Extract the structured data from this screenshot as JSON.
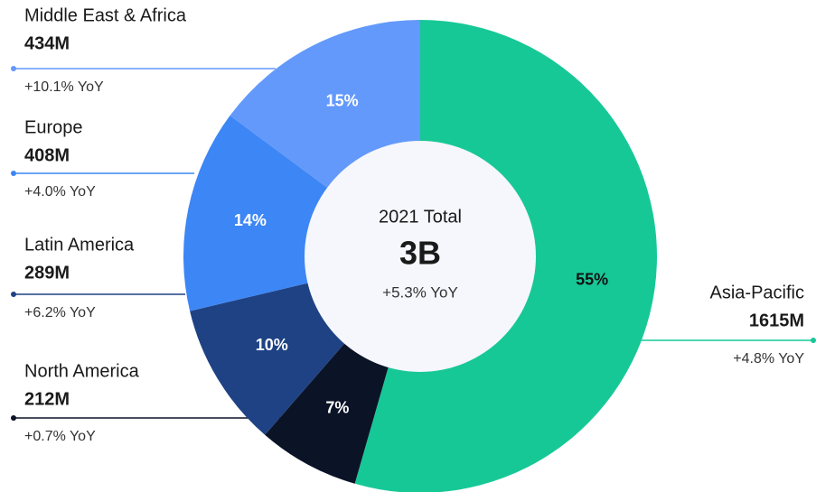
{
  "chart_data": {
    "type": "donut",
    "categories": [
      "Asia-Pacific",
      "North America",
      "Latin America",
      "Europe",
      "Middle East & Africa"
    ],
    "values": [
      55,
      7,
      10,
      14,
      15
    ],
    "value_labels": [
      "55%",
      "7%",
      "10%",
      "14%",
      "15%"
    ],
    "amounts": [
      "1615M",
      "212M",
      "289M",
      "408M",
      "434M"
    ],
    "changes": [
      "+4.8% YoY",
      "+0.7% YoY",
      "+6.2% YoY",
      "+4.0% YoY",
      "+10.1% YoY"
    ],
    "colors": [
      "#17c897",
      "#0b1326",
      "#1e4283",
      "#3d86f5",
      "#6399fb"
    ],
    "center_label": "2021 Total",
    "center_value": "3B",
    "center_change": "+5.3% YoY"
  }
}
